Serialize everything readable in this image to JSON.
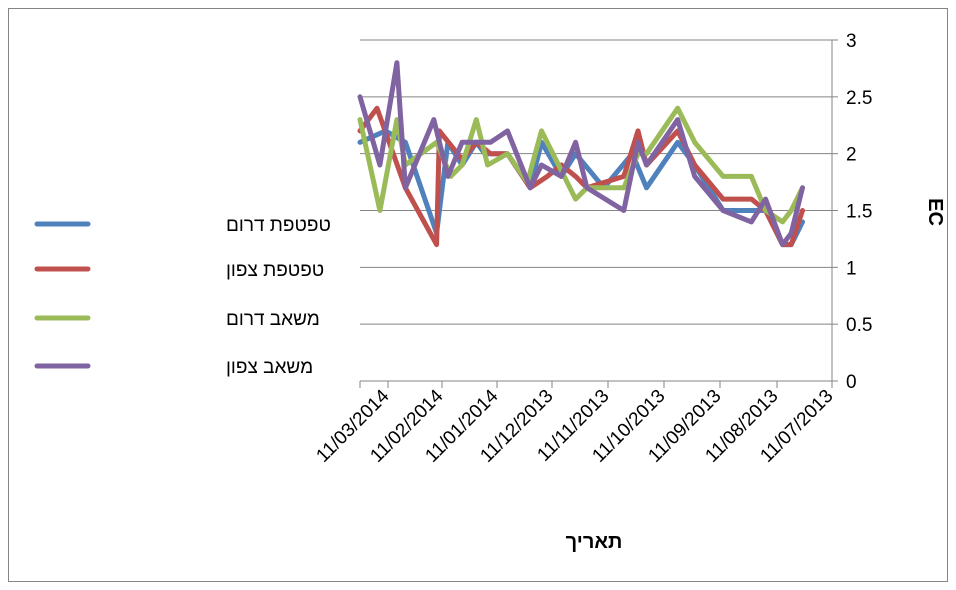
{
  "chart_data": {
    "type": "line",
    "xlabel": "תאריך",
    "ylabel": "EC",
    "ylim": [
      0,
      3
    ],
    "yticks": [
      "0",
      "0.5",
      "1",
      "1.5",
      "2",
      "2.5",
      "3"
    ],
    "x_tick_labels": [
      "11/03/2014",
      "11/02/2014",
      "11/01/2014",
      "11/12/2013",
      "11/11/2013",
      "11/10/2013",
      "11/09/2013",
      "11/08/2013",
      "11/07/2013"
    ],
    "x_direction": "reversed",
    "legend_position": "left",
    "grid": "horizontal",
    "series": [
      {
        "name": "טפטפת דרום",
        "color": "#4F81BD",
        "points": [
          [
            0,
            2.1
          ],
          [
            0.45,
            2.2
          ],
          [
            0.8,
            2.1
          ],
          [
            1.35,
            1.3
          ],
          [
            1.55,
            2.1
          ],
          [
            1.8,
            1.9
          ],
          [
            2.05,
            2.1
          ],
          [
            2.2,
            2.0
          ],
          [
            2.6,
            2.0
          ],
          [
            3.0,
            1.7
          ],
          [
            3.2,
            2.1
          ],
          [
            3.55,
            1.8
          ],
          [
            3.8,
            2.0
          ],
          [
            4.3,
            1.7
          ],
          [
            4.8,
            2.0
          ],
          [
            5.05,
            1.7
          ],
          [
            5.6,
            2.1
          ],
          [
            5.9,
            1.9
          ],
          [
            6.4,
            1.5
          ],
          [
            6.9,
            1.5
          ],
          [
            7.15,
            1.5
          ],
          [
            7.45,
            1.2
          ],
          [
            7.6,
            1.2
          ],
          [
            7.8,
            1.4
          ]
        ]
      },
      {
        "name": "טפטפת צפון",
        "color": "#C0504D",
        "points": [
          [
            0,
            2.2
          ],
          [
            0.3,
            2.4
          ],
          [
            0.8,
            1.7
          ],
          [
            1.35,
            1.2
          ],
          [
            1.4,
            2.2
          ],
          [
            1.8,
            1.95
          ],
          [
            2.05,
            2.1
          ],
          [
            2.3,
            2.0
          ],
          [
            2.6,
            2.0
          ],
          [
            3.0,
            1.7
          ],
          [
            3.3,
            1.8
          ],
          [
            3.55,
            1.9
          ],
          [
            3.8,
            1.8
          ],
          [
            4.0,
            1.7
          ],
          [
            4.65,
            1.8
          ],
          [
            4.9,
            2.2
          ],
          [
            5.05,
            1.9
          ],
          [
            5.6,
            2.2
          ],
          [
            5.9,
            1.9
          ],
          [
            6.4,
            1.6
          ],
          [
            6.9,
            1.6
          ],
          [
            7.15,
            1.5
          ],
          [
            7.45,
            1.2
          ],
          [
            7.6,
            1.2
          ],
          [
            7.8,
            1.5
          ]
        ]
      },
      {
        "name": "משאב דרום",
        "color": "#9BBB59",
        "points": [
          [
            0,
            2.3
          ],
          [
            0.35,
            1.5
          ],
          [
            0.65,
            2.3
          ],
          [
            0.8,
            1.9
          ],
          [
            1.35,
            2.1
          ],
          [
            1.6,
            1.8
          ],
          [
            1.8,
            1.9
          ],
          [
            2.05,
            2.3
          ],
          [
            2.25,
            1.9
          ],
          [
            2.6,
            2.0
          ],
          [
            2.95,
            1.75
          ],
          [
            3.2,
            2.2
          ],
          [
            3.55,
            1.85
          ],
          [
            3.8,
            1.6
          ],
          [
            4.0,
            1.7
          ],
          [
            4.65,
            1.7
          ],
          [
            4.9,
            2.0
          ],
          [
            5.05,
            2.0
          ],
          [
            5.6,
            2.4
          ],
          [
            5.9,
            2.1
          ],
          [
            6.4,
            1.8
          ],
          [
            6.9,
            1.8
          ],
          [
            7.15,
            1.5
          ],
          [
            7.45,
            1.4
          ],
          [
            7.6,
            1.5
          ],
          [
            7.8,
            1.7
          ]
        ]
      },
      {
        "name": "משאב צפון",
        "color": "#8064A2",
        "points": [
          [
            0,
            2.5
          ],
          [
            0.35,
            1.9
          ],
          [
            0.65,
            2.8
          ],
          [
            0.8,
            1.7
          ],
          [
            1.3,
            2.3
          ],
          [
            1.55,
            1.8
          ],
          [
            1.8,
            2.1
          ],
          [
            2.05,
            2.1
          ],
          [
            2.3,
            2.1
          ],
          [
            2.6,
            2.2
          ],
          [
            3.0,
            1.7
          ],
          [
            3.2,
            1.9
          ],
          [
            3.55,
            1.8
          ],
          [
            3.8,
            2.1
          ],
          [
            4.0,
            1.7
          ],
          [
            4.65,
            1.5
          ],
          [
            4.9,
            2.1
          ],
          [
            5.05,
            1.9
          ],
          [
            5.6,
            2.3
          ],
          [
            5.9,
            1.8
          ],
          [
            6.4,
            1.5
          ],
          [
            6.9,
            1.4
          ],
          [
            7.15,
            1.6
          ],
          [
            7.45,
            1.2
          ],
          [
            7.6,
            1.3
          ],
          [
            7.8,
            1.7
          ]
        ]
      }
    ]
  }
}
